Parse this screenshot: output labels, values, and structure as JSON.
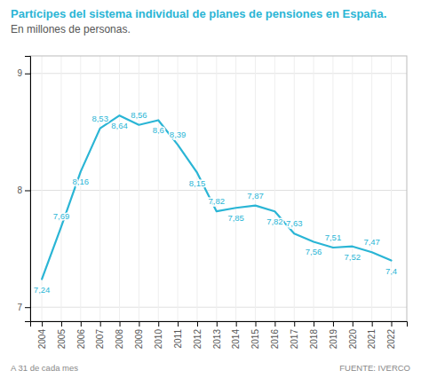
{
  "chart_data": {
    "type": "line",
    "title": "Partícipes del sistema individual de planes de pensiones en España.",
    "subtitle": "En millones de personas.",
    "annotations": [
      "A 31 de cada mes",
      "FUENTE: IVERCO"
    ],
    "x": [
      2004,
      2005,
      2006,
      2007,
      2008,
      2009,
      2010,
      2011,
      2012,
      2013,
      2014,
      2015,
      2016,
      2017,
      2018,
      2019,
      2020,
      2021,
      2022
    ],
    "values": [
      7.24,
      7.69,
      8.16,
      8.53,
      8.64,
      8.56,
      8.6,
      8.39,
      8.15,
      7.82,
      7.85,
      7.87,
      7.82,
      7.63,
      7.56,
      7.51,
      7.52,
      7.47,
      7.4
    ],
    "value_labels": [
      "7,24",
      "7,69",
      "8,16",
      "8,53",
      "8,64",
      "8,56",
      "8,6",
      "8,39",
      "8,15",
      "7,82",
      "7,85",
      "7,87",
      "7,82",
      "7,63",
      "7,56",
      "7,51",
      "7,52",
      "7,47",
      "7,4"
    ],
    "color": "#2ab5d5",
    "xlim": [
      2003.4,
      2022.8
    ],
    "xticks": [
      2004,
      2005,
      2006,
      2007,
      2008,
      2009,
      2010,
      2011,
      2012,
      2013,
      2014,
      2015,
      2016,
      2017,
      2018,
      2019,
      2020,
      2021,
      2022
    ],
    "ylim": [
      6.88,
      9.15
    ],
    "yticks": [
      7,
      8,
      9
    ],
    "grid": true,
    "data_labels": true
  }
}
